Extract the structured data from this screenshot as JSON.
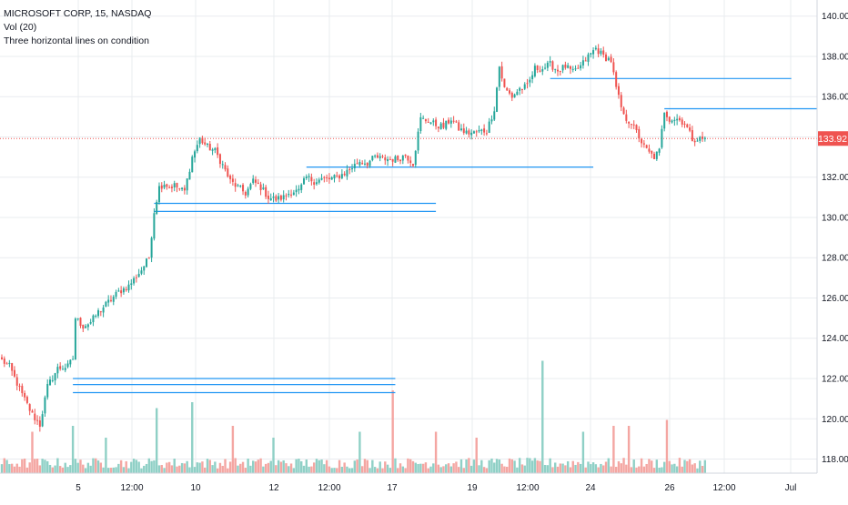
{
  "header": {
    "symbol_line": "MICROSOFT CORP, 15, NASDAQ",
    "volume_line": "Vol (20)",
    "indicator_line": "Three horizontal lines on condition"
  },
  "chart_data": {
    "type": "candlestick",
    "title": "MICROSOFT CORP, 15, NASDAQ",
    "x_tick_labels": [
      "5",
      "12:00",
      "10",
      "12",
      "12:00",
      "17",
      "19",
      "12:00",
      "24",
      "26",
      "12:00",
      "Jul"
    ],
    "y_axis": {
      "ylim": [
        117.3,
        140.8
      ],
      "ticks": [
        "140.00",
        "138.00",
        "136.00",
        "134.00",
        "132.00",
        "130.00",
        "128.00",
        "126.00",
        "124.00",
        "122.00",
        "120.00",
        "118.00"
      ]
    },
    "last_price": "133.92",
    "grid": true,
    "colors": {
      "up": "#26a69a",
      "down": "#ef5350",
      "volume_up": "#8fd0c6",
      "volume_down": "#f4a6a2",
      "level_line": "#2196f3",
      "price_line": "#ef5350",
      "grid": "#e9ecef",
      "axis_text": "#131722"
    },
    "price_path_anchors": [
      [
        0,
        122.9
      ],
      [
        3,
        122.6
      ],
      [
        8,
        121.2
      ],
      [
        12,
        120.2
      ],
      [
        15,
        119.7
      ],
      [
        18,
        121.6
      ],
      [
        22,
        122.5
      ],
      [
        26,
        122.6
      ],
      [
        28,
        123.0
      ],
      [
        29,
        125.0
      ],
      [
        32,
        124.6
      ],
      [
        35,
        124.8
      ],
      [
        38,
        125.3
      ],
      [
        42,
        125.8
      ],
      [
        46,
        126.3
      ],
      [
        50,
        126.6
      ],
      [
        55,
        127.4
      ],
      [
        58,
        128.0
      ],
      [
        60,
        130.3
      ],
      [
        62,
        131.5
      ],
      [
        64,
        131.7
      ],
      [
        66,
        131.5
      ],
      [
        68,
        131.6
      ],
      [
        70,
        131.4
      ],
      [
        72,
        131.3
      ],
      [
        75,
        133.0
      ],
      [
        78,
        133.9
      ],
      [
        81,
        133.5
      ],
      [
        84,
        133.3
      ],
      [
        87,
        132.6
      ],
      [
        90,
        131.8
      ],
      [
        93,
        131.5
      ],
      [
        96,
        131.2
      ],
      [
        99,
        131.8
      ],
      [
        102,
        131.5
      ],
      [
        105,
        131.0
      ],
      [
        108,
        130.9
      ],
      [
        111,
        131.0
      ],
      [
        114,
        131.3
      ],
      [
        117,
        131.3
      ],
      [
        120,
        132.0
      ],
      [
        123,
        131.8
      ],
      [
        126,
        131.9
      ],
      [
        129,
        131.9
      ],
      [
        132,
        132.0
      ],
      [
        135,
        132.2
      ],
      [
        138,
        132.5
      ],
      [
        141,
        132.8
      ],
      [
        144,
        132.7
      ],
      [
        147,
        133.0
      ],
      [
        150,
        132.9
      ],
      [
        153,
        132.9
      ],
      [
        156,
        132.9
      ],
      [
        159,
        133.1
      ],
      [
        162,
        132.7
      ],
      [
        165,
        134.9
      ],
      [
        168,
        134.8
      ],
      [
        171,
        134.6
      ],
      [
        174,
        134.5
      ],
      [
        177,
        134.9
      ],
      [
        180,
        134.4
      ],
      [
        183,
        134.2
      ],
      [
        186,
        134.2
      ],
      [
        189,
        134.3
      ],
      [
        191,
        134.3
      ],
      [
        194,
        135.4
      ],
      [
        196,
        137.5
      ],
      [
        198,
        136.4
      ],
      [
        201,
        136.0
      ],
      [
        204,
        136.4
      ],
      [
        207,
        136.5
      ],
      [
        210,
        137.4
      ],
      [
        213,
        137.4
      ],
      [
        216,
        137.6
      ],
      [
        219,
        137.3
      ],
      [
        222,
        137.5
      ],
      [
        225,
        137.2
      ],
      [
        228,
        137.5
      ],
      [
        231,
        138.0
      ],
      [
        234,
        138.4
      ],
      [
        237,
        138.0
      ],
      [
        240,
        137.8
      ],
      [
        242,
        136.4
      ],
      [
        245,
        135.0
      ],
      [
        248,
        134.7
      ],
      [
        251,
        134.0
      ],
      [
        253,
        133.5
      ],
      [
        255,
        133.2
      ],
      [
        257,
        133.0
      ],
      [
        259,
        133.3
      ],
      [
        261,
        135.3
      ],
      [
        263,
        134.9
      ],
      [
        266,
        134.9
      ],
      [
        269,
        134.7
      ],
      [
        272,
        133.9
      ],
      [
        275,
        133.9
      ],
      [
        277,
        133.9
      ]
    ],
    "horizontal_levels": [
      {
        "price": 122.0,
        "start": 28,
        "end": 155
      },
      {
        "price": 121.7,
        "start": 28,
        "end": 155
      },
      {
        "price": 121.3,
        "start": 28,
        "end": 155
      },
      {
        "price": 130.7,
        "start": 60,
        "end": 171
      },
      {
        "price": 130.3,
        "start": 60,
        "end": 171
      },
      {
        "price": 132.5,
        "start": 120,
        "end": 233
      },
      {
        "price": 136.9,
        "start": 216,
        "end": 311
      },
      {
        "price": 135.4,
        "start": 261,
        "end": 322
      }
    ],
    "total_bars": 278,
    "volume_spikes": [
      [
        12,
        0.35
      ],
      [
        28,
        0.4
      ],
      [
        41,
        0.3
      ],
      [
        61,
        0.55
      ],
      [
        75,
        0.6
      ],
      [
        91,
        0.4
      ],
      [
        107,
        0.3
      ],
      [
        141,
        0.35
      ],
      [
        154,
        0.7
      ],
      [
        171,
        0.35
      ],
      [
        187,
        0.3
      ],
      [
        213,
        0.95
      ],
      [
        229,
        0.35
      ],
      [
        241,
        0.4
      ],
      [
        247,
        0.4
      ],
      [
        262,
        0.45
      ]
    ]
  }
}
